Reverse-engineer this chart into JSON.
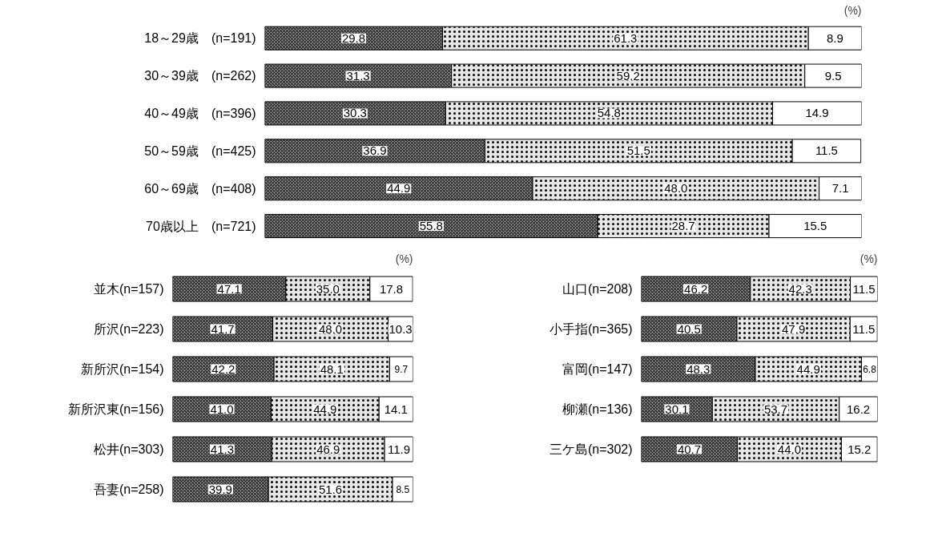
{
  "chart_data": [
    {
      "type": "bar",
      "orientation": "horizontal",
      "stacked": true,
      "tick_labels": "y",
      "xlim": [
        0,
        100
      ],
      "annotations": [
        "(%)"
      ],
      "categories": [
        "18～29歳　(n=191)",
        "30～39歳　(n=262)",
        "40～49歳　(n=396)",
        "50～59歳　(n=425)",
        "60～69歳　(n=408)",
        "70歳以上　(n=721)"
      ],
      "series": [
        {
          "color": "#808080",
          "values": [
            29.8,
            31.3,
            30.3,
            36.9,
            44.9,
            55.8
          ],
          "value_labels": [
            "29.8",
            "31.3",
            "30.3",
            "36.9",
            "44.9",
            "55.8"
          ]
        },
        {
          "color": "#e6e6e6",
          "values": [
            61.3,
            59.2,
            54.8,
            51.5,
            48.0,
            28.7
          ],
          "value_labels": [
            "61.3",
            "59.2",
            "54.8",
            "51.5",
            "48.0",
            "28.7"
          ]
        },
        {
          "color": "#ffffff",
          "values": [
            8.9,
            9.5,
            14.9,
            11.5,
            7.1,
            15.5
          ],
          "value_labels": [
            "8.9",
            "9.5",
            "14.9",
            "11.5",
            "7.1",
            "15.5"
          ]
        }
      ]
    },
    {
      "type": "bar",
      "orientation": "horizontal",
      "stacked": true,
      "tick_labels": "y",
      "xlim": [
        0,
        100
      ],
      "annotations": [
        "(%)"
      ],
      "categories": [
        "並木(n=157)",
        "所沢(n=223)",
        "新所沢(n=154)",
        "新所沢東(n=156)",
        "松井(n=303)",
        "吾妻(n=258)"
      ],
      "series": [
        {
          "color": "#808080",
          "values": [
            47.1,
            41.7,
            42.2,
            41.0,
            41.3,
            39.9
          ],
          "value_labels": [
            "47.1",
            "41.7",
            "42.2",
            "41.0",
            "41.3",
            "39.9"
          ]
        },
        {
          "color": "#e6e6e6",
          "values": [
            35.0,
            48.0,
            48.1,
            44.9,
            46.9,
            51.6
          ],
          "value_labels": [
            "35.0",
            "48.0",
            "48.1",
            "44.9",
            "46.9",
            "51.6"
          ]
        },
        {
          "color": "#ffffff",
          "values": [
            17.8,
            10.3,
            9.7,
            14.1,
            11.9,
            8.5
          ],
          "value_labels": [
            "17.8",
            "10.3",
            "9.7",
            "14.1",
            "11.9",
            "8.5"
          ]
        }
      ]
    },
    {
      "type": "bar",
      "orientation": "horizontal",
      "stacked": true,
      "tick_labels": "y",
      "xlim": [
        0,
        100
      ],
      "annotations": [
        "(%)"
      ],
      "categories": [
        "山口(n=208)",
        "小手指(n=365)",
        "富岡(n=147)",
        "柳瀬(n=136)",
        "三ケ島(n=302)"
      ],
      "series": [
        {
          "color": "#808080",
          "values": [
            46.2,
            40.5,
            48.3,
            30.1,
            40.7
          ],
          "value_labels": [
            "46.2",
            "40.5",
            "48.3",
            "30.1",
            "40.7"
          ]
        },
        {
          "color": "#e6e6e6",
          "values": [
            42.3,
            47.9,
            44.9,
            53.7,
            44.0
          ],
          "value_labels": [
            "42.3",
            "47.9",
            "44.9",
            "53.7",
            "44.0"
          ]
        },
        {
          "color": "#ffffff",
          "values": [
            11.5,
            11.5,
            6.8,
            16.2,
            15.2
          ],
          "value_labels": [
            "11.5",
            "11.5",
            "6.8",
            "16.2",
            "15.2"
          ]
        }
      ]
    }
  ]
}
